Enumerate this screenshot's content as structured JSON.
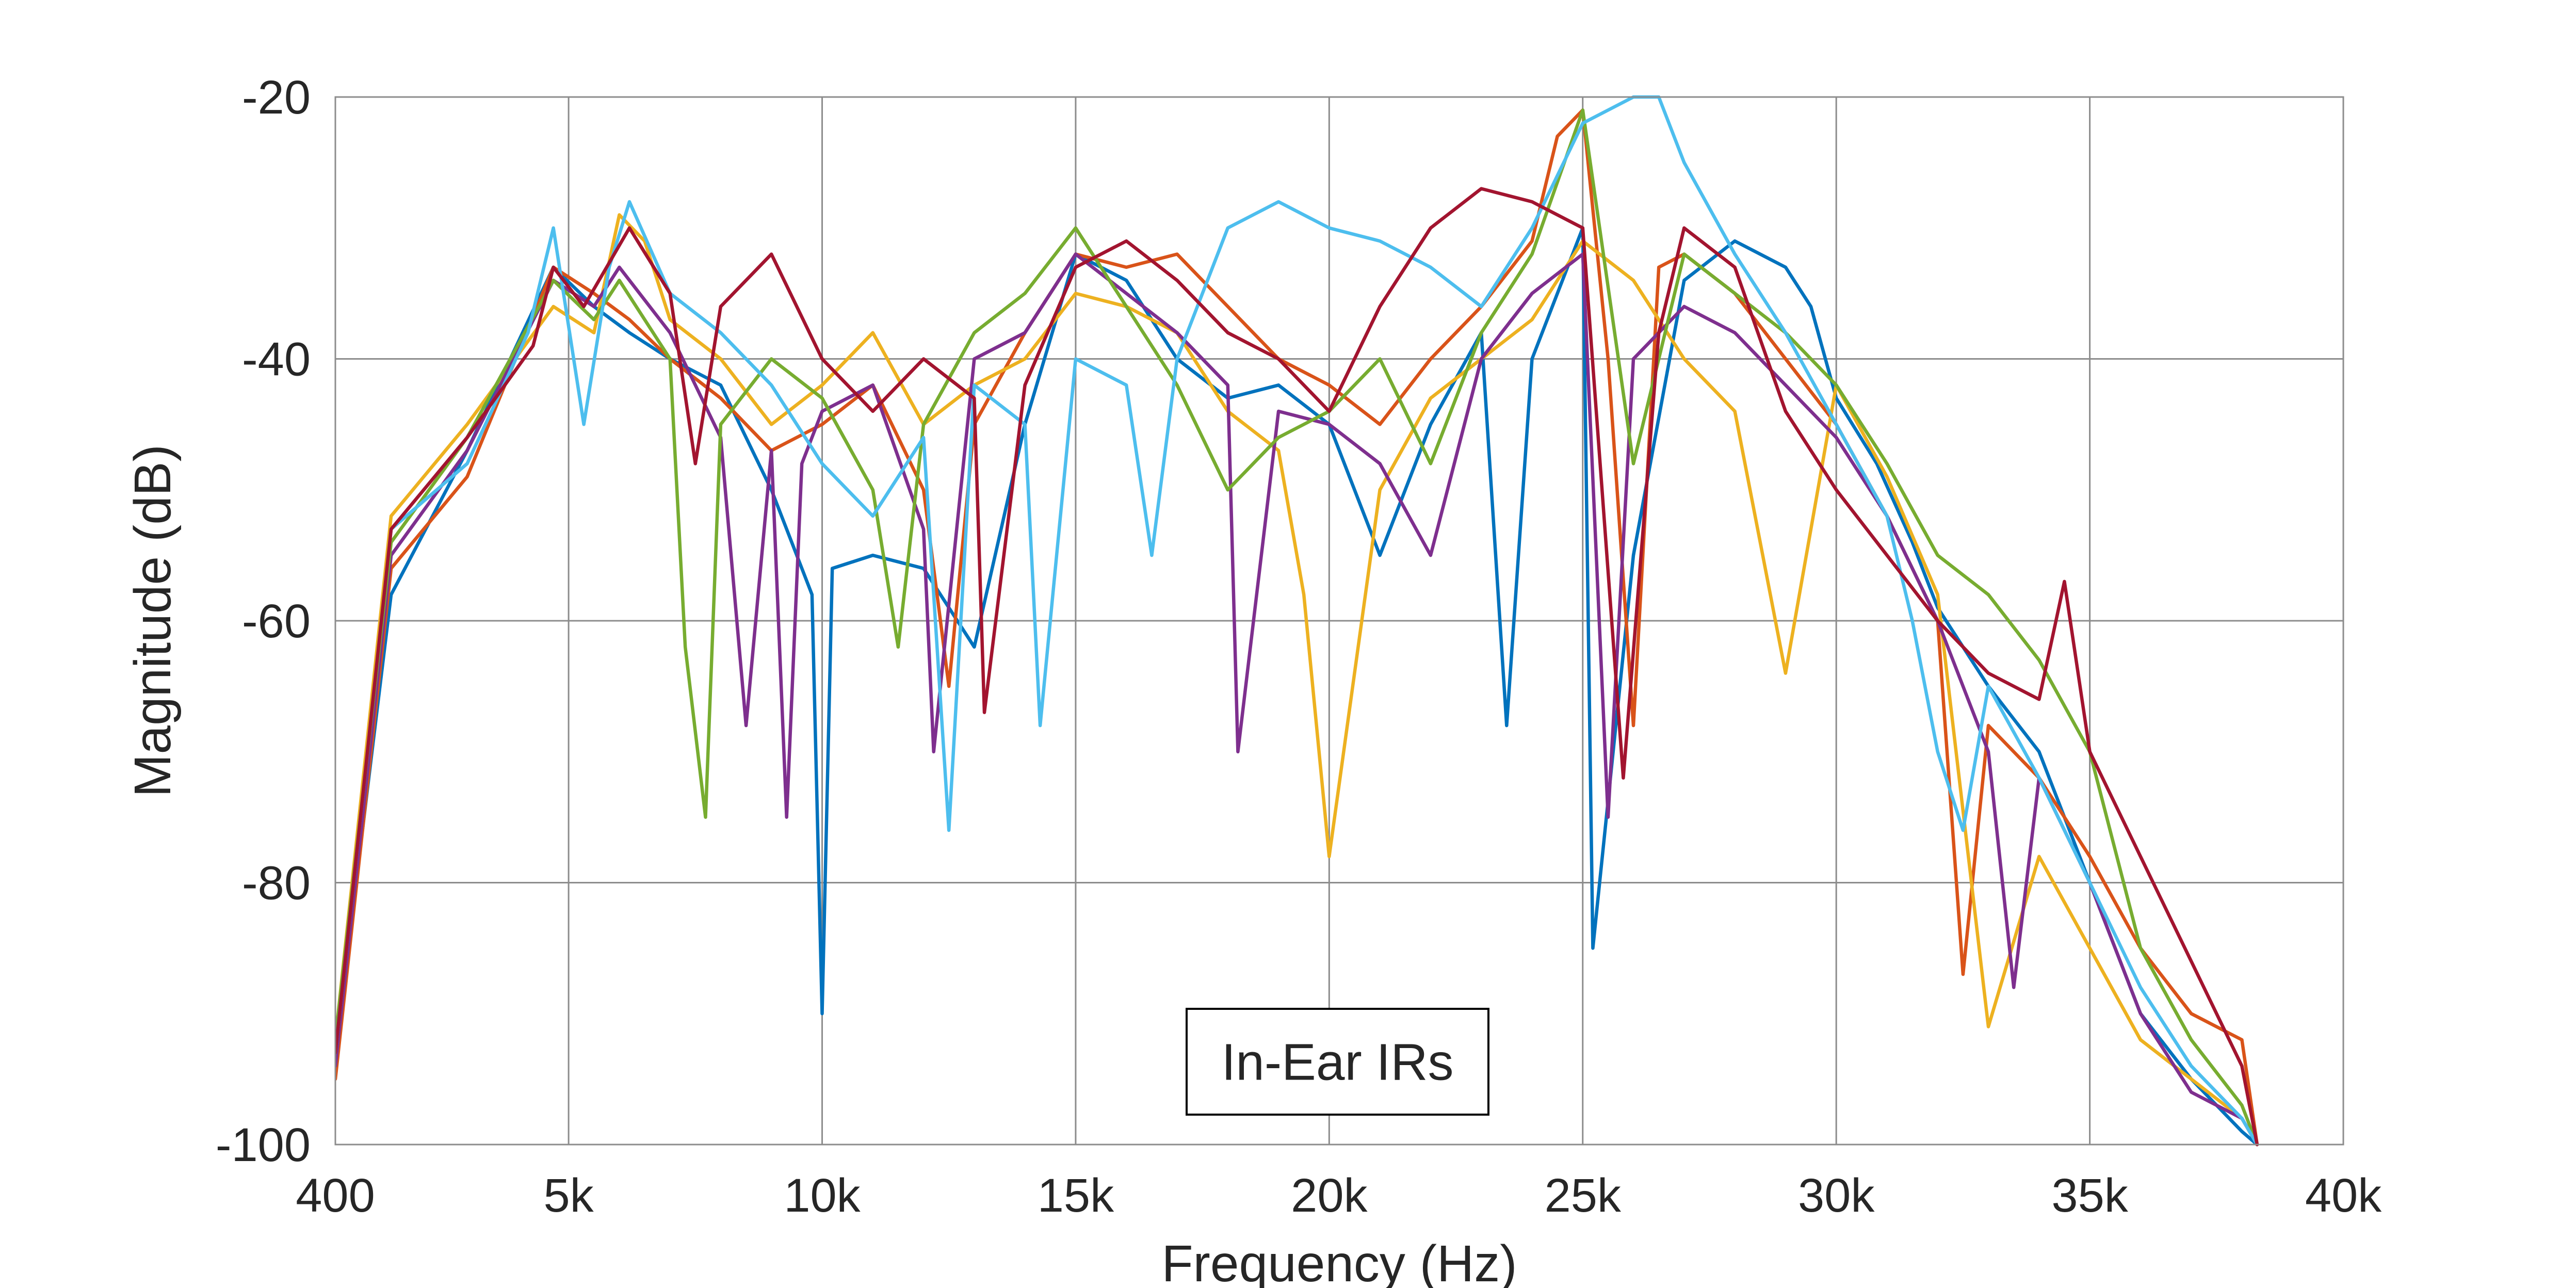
{
  "chart_data": {
    "type": "line",
    "title": "",
    "xlabel": "Frequency (Hz)",
    "ylabel": "Magnitude (dB)",
    "xlim": [
      400,
      40000
    ],
    "ylim": [
      -100,
      -20
    ],
    "grid": true,
    "legend": "none",
    "x_ticks": [
      {
        "value": 400,
        "label": "400"
      },
      {
        "value": 5000,
        "label": "5k"
      },
      {
        "value": 10000,
        "label": "10k"
      },
      {
        "value": 15000,
        "label": "15k"
      },
      {
        "value": 20000,
        "label": "20k"
      },
      {
        "value": 25000,
        "label": "25k"
      },
      {
        "value": 30000,
        "label": "30k"
      },
      {
        "value": 35000,
        "label": "35k"
      },
      {
        "value": 40000,
        "label": "40k"
      }
    ],
    "y_ticks": [
      {
        "value": -20,
        "label": "-20"
      },
      {
        "value": -40,
        "label": "-40"
      },
      {
        "value": -60,
        "label": "-60"
      },
      {
        "value": -80,
        "label": "-80"
      },
      {
        "value": -100,
        "label": "-100"
      }
    ],
    "annotation": "In-Ear IRs",
    "series": [
      {
        "color": "#0072BD",
        "x": [
          400,
          1500,
          3000,
          4700,
          5500,
          6200,
          7000,
          8000,
          9000,
          9800,
          10000,
          10200,
          11000,
          12000,
          13000,
          14000,
          15000,
          16000,
          17000,
          18000,
          19000,
          20000,
          21000,
          22000,
          23000,
          23500,
          24000,
          25000,
          25200,
          26000,
          27000,
          28000,
          29000,
          29500,
          30000,
          30800,
          31500,
          32000,
          33000,
          34000,
          35000,
          36000,
          37000,
          38000,
          38300
        ],
        "y": [
          -93,
          -58,
          -47,
          -33,
          -36,
          -38,
          -40,
          -42,
          -50,
          -58,
          -90,
          -56,
          -55,
          -56,
          -62,
          -45,
          -32,
          -34,
          -40,
          -43,
          -42,
          -45,
          -55,
          -45,
          -38,
          -68,
          -40,
          -30,
          -85,
          -55,
          -34,
          -31,
          -33,
          -36,
          -43,
          -48,
          -54,
          -59,
          -65,
          -70,
          -80,
          -90,
          -95,
          -99,
          -100
        ]
      },
      {
        "color": "#D95319",
        "x": [
          400,
          1500,
          3000,
          4700,
          5500,
          6200,
          7000,
          8000,
          9000,
          10000,
          11000,
          12000,
          12500,
          13000,
          14000,
          15000,
          16000,
          17000,
          18000,
          19000,
          20000,
          21000,
          22000,
          23000,
          24000,
          24500,
          25000,
          25500,
          26000,
          26500,
          27000,
          28000,
          29000,
          30000,
          31000,
          32000,
          32500,
          33000,
          34000,
          35000,
          36000,
          37000,
          38000,
          38300
        ],
        "y": [
          -95,
          -56,
          -49,
          -33,
          -35,
          -37,
          -40,
          -43,
          -47,
          -45,
          -42,
          -50,
          -65,
          -45,
          -38,
          -32,
          -33,
          -32,
          -36,
          -40,
          -42,
          -45,
          -40,
          -36,
          -31,
          -23,
          -21,
          -40,
          -68,
          -33,
          -32,
          -35,
          -40,
          -45,
          -52,
          -60,
          -87,
          -68,
          -72,
          -78,
          -85,
          -90,
          -92,
          -100
        ]
      },
      {
        "color": "#EDB120",
        "x": [
          400,
          1500,
          3000,
          4700,
          5500,
          6000,
          6500,
          7000,
          8000,
          9000,
          10000,
          11000,
          12000,
          13000,
          14000,
          15000,
          16000,
          17000,
          18000,
          19000,
          19500,
          20000,
          21000,
          22000,
          23000,
          24000,
          25000,
          26000,
          27000,
          28000,
          29000,
          30000,
          31000,
          32000,
          33000,
          34000,
          35000,
          36000,
          37000,
          38000,
          38300
        ],
        "y": [
          -92,
          -52,
          -45,
          -36,
          -38,
          -29,
          -31,
          -37,
          -40,
          -45,
          -42,
          -38,
          -45,
          -42,
          -40,
          -35,
          -36,
          -38,
          -44,
          -47,
          -58,
          -78,
          -50,
          -43,
          -40,
          -37,
          -31,
          -34,
          -40,
          -44,
          -64,
          -42,
          -49,
          -58,
          -91,
          -78,
          -85,
          -92,
          -95,
          -98,
          -100
        ]
      },
      {
        "color": "#7E2F8E",
        "x": [
          400,
          1500,
          3000,
          4700,
          5500,
          6000,
          7000,
          8000,
          8500,
          9000,
          9300,
          9600,
          10000,
          11000,
          12000,
          12200,
          13000,
          14000,
          15000,
          16000,
          17000,
          18000,
          18200,
          19000,
          20000,
          21000,
          22000,
          23000,
          24000,
          25000,
          25500,
          26000,
          27000,
          28000,
          29000,
          30000,
          31000,
          32000,
          33000,
          33500,
          34000,
          35000,
          36000,
          37000,
          38000,
          38300
        ],
        "y": [
          -94,
          -55,
          -47,
          -34,
          -36,
          -33,
          -38,
          -46,
          -68,
          -47,
          -75,
          -48,
          -44,
          -42,
          -53,
          -70,
          -40,
          -38,
          -32,
          -35,
          -38,
          -42,
          -70,
          -44,
          -45,
          -48,
          -55,
          -40,
          -35,
          -32,
          -75,
          -40,
          -36,
          -38,
          -42,
          -46,
          -52,
          -60,
          -70,
          -88,
          -72,
          -80,
          -90,
          -96,
          -98,
          -100
        ]
      },
      {
        "color": "#77AC30",
        "x": [
          400,
          1500,
          3000,
          4700,
          5500,
          6000,
          7000,
          7300,
          7700,
          8000,
          9000,
          10000,
          11000,
          11500,
          12000,
          13000,
          14000,
          15000,
          16000,
          17000,
          18000,
          19000,
          20000,
          21000,
          22000,
          23000,
          24000,
          25000,
          26000,
          27000,
          28000,
          29000,
          30000,
          31000,
          32000,
          33000,
          34000,
          35000,
          36000,
          37000,
          38000,
          38300
        ],
        "y": [
          -92,
          -54,
          -46,
          -34,
          -37,
          -34,
          -40,
          -62,
          -75,
          -45,
          -40,
          -43,
          -50,
          -62,
          -45,
          -38,
          -35,
          -30,
          -36,
          -42,
          -50,
          -46,
          -44,
          -40,
          -48,
          -38,
          -32,
          -21,
          -48,
          -32,
          -35,
          -38,
          -42,
          -48,
          -55,
          -58,
          -63,
          -70,
          -85,
          -92,
          -97,
          -100
        ]
      },
      {
        "color": "#4DBEEE",
        "x": [
          400,
          1500,
          3000,
          4200,
          4700,
          5300,
          5800,
          6200,
          7000,
          8000,
          9000,
          10000,
          11000,
          12000,
          12500,
          13000,
          14000,
          14300,
          15000,
          16000,
          16500,
          17000,
          18000,
          19000,
          20000,
          21000,
          22000,
          23000,
          24000,
          25000,
          26000,
          26500,
          27000,
          28000,
          29000,
          30000,
          31000,
          31500,
          32000,
          32500,
          33000,
          34000,
          35000,
          36000,
          37000,
          38000,
          38300
        ],
        "y": [
          -93,
          -53,
          -48,
          -38,
          -30,
          -45,
          -33,
          -28,
          -35,
          -38,
          -42,
          -48,
          -52,
          -46,
          -76,
          -42,
          -45,
          -68,
          -40,
          -42,
          -55,
          -40,
          -30,
          -28,
          -30,
          -31,
          -33,
          -36,
          -30,
          -22,
          -20,
          -16,
          -25,
          -32,
          -38,
          -45,
          -52,
          -60,
          -70,
          -76,
          -65,
          -72,
          -80,
          -88,
          -94,
          -98,
          -100
        ]
      },
      {
        "color": "#A2142F",
        "x": [
          400,
          1500,
          3000,
          4300,
          4700,
          5300,
          6200,
          7000,
          7500,
          8000,
          9000,
          10000,
          11000,
          12000,
          13000,
          13200,
          14000,
          15000,
          16000,
          17000,
          18000,
          19000,
          20000,
          21000,
          22000,
          23000,
          24000,
          25000,
          25800,
          26500,
          27000,
          28000,
          29000,
          30000,
          31000,
          32000,
          33000,
          34000,
          34500,
          35000,
          36000,
          37000,
          38000,
          38300
        ],
        "y": [
          -93,
          -53,
          -46,
          -39,
          -33,
          -36,
          -30,
          -35,
          -48,
          -36,
          -32,
          -40,
          -44,
          -40,
          -43,
          -67,
          -42,
          -33,
          -31,
          -34,
          -38,
          -40,
          -44,
          -36,
          -30,
          -27,
          -28,
          -30,
          -72,
          -38,
          -30,
          -33,
          -44,
          -50,
          -55,
          -60,
          -64,
          -66,
          -57,
          -70,
          -78,
          -86,
          -94,
          -100
        ]
      }
    ]
  }
}
